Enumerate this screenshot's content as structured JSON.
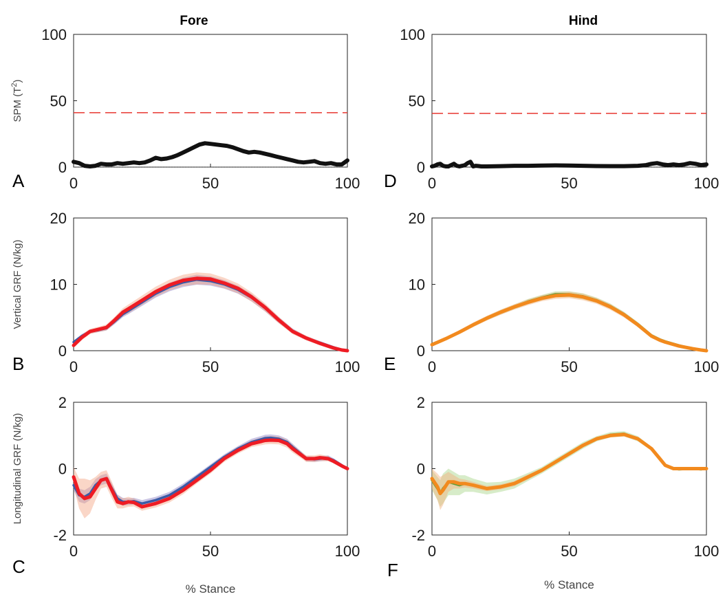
{
  "column_titles": [
    "Fore",
    "Hind"
  ],
  "chart_data": [
    {
      "type": "line",
      "panel_label": "A",
      "ylabel": "SPM (T²)",
      "xlim": [
        0,
        100
      ],
      "ylim": [
        0,
        100
      ],
      "xticks": [
        0,
        50,
        100
      ],
      "yticks": [
        0,
        50,
        100
      ],
      "threshold": 41,
      "threshold_color": "#e8362f",
      "series": [
        {
          "color": "#111111",
          "x": [
            0,
            2,
            4,
            6,
            8,
            10,
            12,
            14,
            16,
            18,
            20,
            22,
            24,
            26,
            28,
            30,
            32,
            34,
            36,
            38,
            40,
            42,
            44,
            46,
            48,
            50,
            52,
            54,
            56,
            58,
            60,
            62,
            64,
            66,
            68,
            70,
            72,
            74,
            76,
            78,
            80,
            82,
            84,
            86,
            88,
            90,
            92,
            94,
            96,
            98,
            100
          ],
          "values": [
            4,
            3,
            1,
            0.5,
            1,
            2.5,
            2,
            2,
            3,
            2.5,
            3,
            3.5,
            3,
            3.5,
            5,
            7,
            6,
            6.5,
            7.5,
            9,
            11,
            13,
            15,
            17,
            18,
            17.5,
            17,
            16.5,
            16,
            15,
            13.5,
            12,
            11,
            11.5,
            11,
            10,
            9,
            8,
            7,
            6,
            5,
            4,
            3.5,
            4,
            4.5,
            3,
            2.5,
            3,
            2,
            2,
            5
          ]
        }
      ]
    },
    {
      "type": "line",
      "panel_label": "B",
      "ylabel": "Vertical GRF (N/kg)",
      "xlim": [
        0,
        100
      ],
      "ylim": [
        0,
        20
      ],
      "xticks": [
        0,
        50,
        100
      ],
      "yticks": [
        0,
        10,
        20
      ],
      "series": [
        {
          "color": "#3b5aa6",
          "band_color": "#8a7fc4",
          "x": [
            0,
            3,
            6,
            9,
            12,
            15,
            18,
            20,
            25,
            30,
            35,
            40,
            45,
            50,
            55,
            60,
            65,
            70,
            75,
            80,
            85,
            90,
            95,
            98,
            100
          ],
          "values": [
            1.3,
            2.2,
            2.9,
            3.1,
            3.4,
            4.4,
            5.5,
            6.0,
            7.3,
            8.6,
            9.6,
            10.3,
            10.7,
            10.5,
            10.0,
            9.2,
            8.0,
            6.4,
            4.6,
            3.0,
            1.9,
            1.2,
            0.5,
            0.15,
            0
          ],
          "spread": [
            0.2,
            0.3,
            0.3,
            0.3,
            0.35,
            0.4,
            0.45,
            0.5,
            0.55,
            0.6,
            0.65,
            0.7,
            0.75,
            0.7,
            0.65,
            0.6,
            0.55,
            0.5,
            0.45,
            0.35,
            0.3,
            0.25,
            0.2,
            0.1,
            0.05
          ]
        },
        {
          "color": "#ee1c24",
          "band_color": "#f4a582",
          "x": [
            0,
            3,
            6,
            9,
            12,
            15,
            18,
            20,
            25,
            30,
            35,
            40,
            45,
            50,
            55,
            60,
            65,
            70,
            75,
            80,
            85,
            90,
            95,
            98,
            100
          ],
          "values": [
            0.8,
            2.0,
            2.9,
            3.2,
            3.5,
            4.6,
            5.8,
            6.3,
            7.6,
            8.9,
            9.9,
            10.6,
            10.9,
            10.8,
            10.2,
            9.4,
            8.1,
            6.5,
            4.6,
            2.9,
            1.9,
            1.1,
            0.4,
            0.1,
            0
          ],
          "spread": [
            0.3,
            0.4,
            0.4,
            0.4,
            0.45,
            0.5,
            0.6,
            0.65,
            0.7,
            0.75,
            0.8,
            0.85,
            0.9,
            0.85,
            0.8,
            0.75,
            0.7,
            0.6,
            0.5,
            0.4,
            0.35,
            0.3,
            0.25,
            0.15,
            0.05
          ]
        }
      ]
    },
    {
      "type": "line",
      "panel_label": "C",
      "ylabel": "Longitudinal GRF (N/kg)",
      "xlabel": "% Stance",
      "xlim": [
        0,
        100
      ],
      "ylim": [
        -2,
        2
      ],
      "xticks": [
        0,
        50,
        100
      ],
      "yticks": [
        -2,
        0,
        2
      ],
      "series": [
        {
          "color": "#3b5aa6",
          "band_color": "#8a7fc4",
          "x": [
            0,
            2,
            4,
            6,
            8,
            10,
            12,
            14,
            16,
            18,
            20,
            22,
            25,
            30,
            35,
            40,
            45,
            50,
            55,
            60,
            65,
            70,
            72,
            75,
            78,
            80,
            83,
            85,
            88,
            90,
            93,
            95,
            98,
            100
          ],
          "values": [
            -0.5,
            -0.8,
            -0.85,
            -0.75,
            -0.5,
            -0.35,
            -0.3,
            -0.6,
            -0.9,
            -1.0,
            -1.0,
            -0.98,
            -1.05,
            -0.95,
            -0.8,
            -0.55,
            -0.25,
            0.05,
            0.35,
            0.6,
            0.8,
            0.92,
            0.93,
            0.9,
            0.8,
            0.65,
            0.45,
            0.3,
            0.28,
            0.3,
            0.32,
            0.25,
            0.1,
            0
          ],
          "spread": [
            0.15,
            0.2,
            0.2,
            0.2,
            0.18,
            0.15,
            0.15,
            0.15,
            0.12,
            0.12,
            0.1,
            0.1,
            0.1,
            0.1,
            0.1,
            0.1,
            0.08,
            0.08,
            0.08,
            0.08,
            0.1,
            0.1,
            0.1,
            0.1,
            0.1,
            0.1,
            0.08,
            0.08,
            0.08,
            0.08,
            0.08,
            0.06,
            0.05,
            0.03
          ]
        },
        {
          "color": "#ee1c24",
          "band_color": "#f4a582",
          "x": [
            0,
            2,
            4,
            6,
            8,
            10,
            12,
            14,
            16,
            18,
            20,
            22,
            25,
            30,
            35,
            40,
            45,
            50,
            55,
            60,
            65,
            70,
            72,
            75,
            78,
            80,
            83,
            85,
            88,
            90,
            93,
            95,
            98,
            100
          ],
          "values": [
            -0.25,
            -0.75,
            -0.9,
            -0.85,
            -0.6,
            -0.35,
            -0.3,
            -0.65,
            -1.0,
            -1.05,
            -1.0,
            -1.02,
            -1.15,
            -1.05,
            -0.9,
            -0.65,
            -0.35,
            -0.05,
            0.3,
            0.55,
            0.75,
            0.85,
            0.86,
            0.85,
            0.75,
            0.6,
            0.42,
            0.3,
            0.3,
            0.33,
            0.3,
            0.22,
            0.08,
            0
          ],
          "spread": [
            0.3,
            0.45,
            0.6,
            0.5,
            0.35,
            0.25,
            0.25,
            0.25,
            0.2,
            0.15,
            0.15,
            0.12,
            0.12,
            0.12,
            0.12,
            0.12,
            0.1,
            0.1,
            0.1,
            0.1,
            0.1,
            0.12,
            0.12,
            0.12,
            0.12,
            0.12,
            0.1,
            0.1,
            0.1,
            0.1,
            0.08,
            0.06,
            0.05,
            0.03
          ]
        }
      ]
    },
    {
      "type": "line",
      "panel_label": "D",
      "xlim": [
        0,
        100
      ],
      "ylim": [
        0,
        100
      ],
      "xticks": [
        0,
        50,
        100
      ],
      "yticks": [
        0,
        50,
        100
      ],
      "threshold": 40.5,
      "threshold_color": "#e8362f",
      "series": [
        {
          "color": "#111111",
          "x": [
            0,
            1,
            2,
            3,
            4,
            5,
            6,
            7,
            8,
            9,
            10,
            11,
            12,
            13,
            14,
            15,
            16,
            17,
            18,
            20,
            25,
            30,
            35,
            40,
            45,
            50,
            55,
            60,
            65,
            70,
            75,
            78,
            80,
            82,
            84,
            86,
            88,
            90,
            92,
            94,
            96,
            98,
            100
          ],
          "values": [
            0.5,
            1,
            2,
            2.5,
            1,
            0.5,
            0.5,
            1.5,
            2.5,
            1,
            0.5,
            1,
            1.5,
            3,
            4,
            0.5,
            1,
            0.8,
            0.5,
            0.5,
            0.7,
            1,
            1,
            1.2,
            1.3,
            1.2,
            1,
            0.8,
            0.7,
            0.7,
            1,
            1.5,
            2.5,
            3,
            2,
            1.5,
            2,
            1.5,
            2,
            3,
            2.5,
            1.5,
            2
          ]
        }
      ]
    },
    {
      "type": "line",
      "panel_label": "E",
      "xlim": [
        0,
        100
      ],
      "ylim": [
        0,
        20
      ],
      "xticks": [
        0,
        50,
        100
      ],
      "yticks": [
        0,
        10,
        20
      ],
      "series": [
        {
          "color": "#5b9e3a",
          "band_color": "#a6d488",
          "x": [
            0,
            5,
            10,
            15,
            20,
            25,
            30,
            35,
            40,
            45,
            50,
            55,
            60,
            65,
            70,
            75,
            80,
            83,
            85,
            90,
            95,
            98,
            100
          ],
          "values": [
            1.0,
            1.8,
            2.8,
            3.9,
            4.9,
            5.8,
            6.6,
            7.4,
            8.0,
            8.5,
            8.5,
            8.2,
            7.6,
            6.7,
            5.5,
            4.0,
            2.3,
            1.7,
            1.4,
            0.8,
            0.3,
            0.1,
            0
          ],
          "spread": [
            0.15,
            0.2,
            0.25,
            0.3,
            0.3,
            0.35,
            0.35,
            0.4,
            0.4,
            0.45,
            0.45,
            0.45,
            0.4,
            0.4,
            0.35,
            0.3,
            0.25,
            0.2,
            0.2,
            0.15,
            0.1,
            0.05,
            0.03
          ]
        },
        {
          "color": "#f28a1e",
          "band_color": "#f4b07a",
          "x": [
            0,
            5,
            10,
            15,
            20,
            25,
            30,
            35,
            40,
            45,
            50,
            55,
            60,
            65,
            70,
            75,
            80,
            83,
            85,
            90,
            95,
            98,
            100
          ],
          "values": [
            0.9,
            1.8,
            2.8,
            3.9,
            4.9,
            5.8,
            6.6,
            7.3,
            7.9,
            8.3,
            8.4,
            8.1,
            7.5,
            6.6,
            5.4,
            3.9,
            2.2,
            1.6,
            1.3,
            0.7,
            0.3,
            0.1,
            0
          ],
          "spread": [
            0.2,
            0.25,
            0.3,
            0.35,
            0.35,
            0.4,
            0.4,
            0.45,
            0.45,
            0.5,
            0.5,
            0.5,
            0.45,
            0.45,
            0.4,
            0.35,
            0.3,
            0.25,
            0.2,
            0.15,
            0.1,
            0.05,
            0.03
          ]
        }
      ]
    },
    {
      "type": "line",
      "panel_label": "F",
      "xlabel": "% Stance",
      "xlim": [
        0,
        100
      ],
      "ylim": [
        -2,
        2
      ],
      "xticks": [
        0,
        50,
        100
      ],
      "yticks": [
        -2,
        0,
        2
      ],
      "series": [
        {
          "color": "#5b9e3a",
          "band_color": "#a6d488",
          "x": [
            0,
            2,
            3,
            4,
            6,
            8,
            10,
            12,
            15,
            20,
            25,
            30,
            35,
            40,
            45,
            50,
            55,
            60,
            65,
            70,
            75,
            80,
            83,
            85,
            88,
            90,
            95,
            98,
            100
          ],
          "values": [
            -0.35,
            -0.6,
            -0.75,
            -0.6,
            -0.4,
            -0.45,
            -0.5,
            -0.45,
            -0.5,
            -0.6,
            -0.55,
            -0.45,
            -0.25,
            -0.05,
            0.2,
            0.45,
            0.7,
            0.9,
            1.02,
            1.05,
            0.9,
            0.6,
            0.3,
            0.1,
            0,
            -0.02,
            0,
            -0.02,
            0
          ],
          "spread": [
            0.3,
            0.35,
            0.4,
            0.45,
            0.4,
            0.35,
            0.3,
            0.25,
            0.2,
            0.18,
            0.15,
            0.15,
            0.12,
            0.1,
            0.1,
            0.1,
            0.1,
            0.08,
            0.08,
            0.08,
            0.08,
            0.06,
            0.05,
            0.04,
            0.03,
            0.02,
            0.02,
            0.02,
            0.02
          ]
        },
        {
          "color": "#f28a1e",
          "band_color": "#f4b07a",
          "x": [
            0,
            2,
            3,
            4,
            6,
            8,
            10,
            12,
            15,
            20,
            25,
            30,
            35,
            40,
            45,
            50,
            55,
            60,
            65,
            70,
            75,
            80,
            83,
            85,
            88,
            90,
            95,
            98,
            100
          ],
          "values": [
            -0.3,
            -0.55,
            -0.75,
            -0.65,
            -0.4,
            -0.4,
            -0.45,
            -0.45,
            -0.5,
            -0.6,
            -0.55,
            -0.45,
            -0.25,
            -0.05,
            0.2,
            0.45,
            0.7,
            0.9,
            1.0,
            1.03,
            0.9,
            0.6,
            0.3,
            0.1,
            0,
            0,
            0,
            0,
            0
          ],
          "spread": [
            0.3,
            0.4,
            0.5,
            0.45,
            0.3,
            0.2,
            0.15,
            0.12,
            0.1,
            0.08,
            0.08,
            0.08,
            0.08,
            0.06,
            0.06,
            0.06,
            0.06,
            0.06,
            0.06,
            0.06,
            0.06,
            0.05,
            0.04,
            0.03,
            0.02,
            0.02,
            0.02,
            0.02,
            0.02
          ]
        }
      ]
    }
  ]
}
